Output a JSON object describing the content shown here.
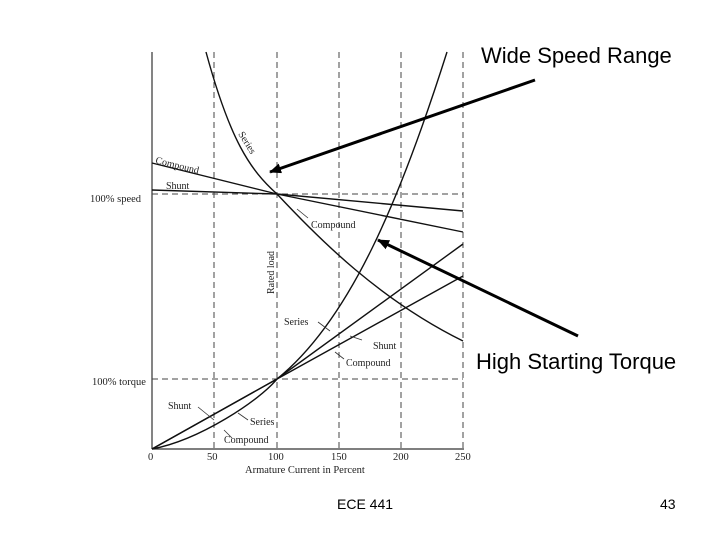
{
  "callouts": {
    "top": "Wide Speed Range",
    "bottom": "High Starting Torque"
  },
  "chart": {
    "xlabel": "Armature Current in Percent",
    "rotated_label": "Rated load",
    "x_ticks": [
      "0",
      "50",
      "100",
      "150",
      "200",
      "250"
    ],
    "y_labels": {
      "speed": "100% speed",
      "torque": "100% torque"
    },
    "curve_labels": {
      "series_speed": "Series",
      "compound_speed": "Compound",
      "shunt_speed": "Shunt",
      "compound_speed_2": "Compound",
      "series_torque": "Series",
      "shunt_torque": "Shunt",
      "compound_torque": "Compound",
      "shunt_low": "Shunt",
      "series_low": "Series",
      "compound_low": "Compound"
    }
  },
  "footer": {
    "course": "ECE 441",
    "page": "43"
  }
}
